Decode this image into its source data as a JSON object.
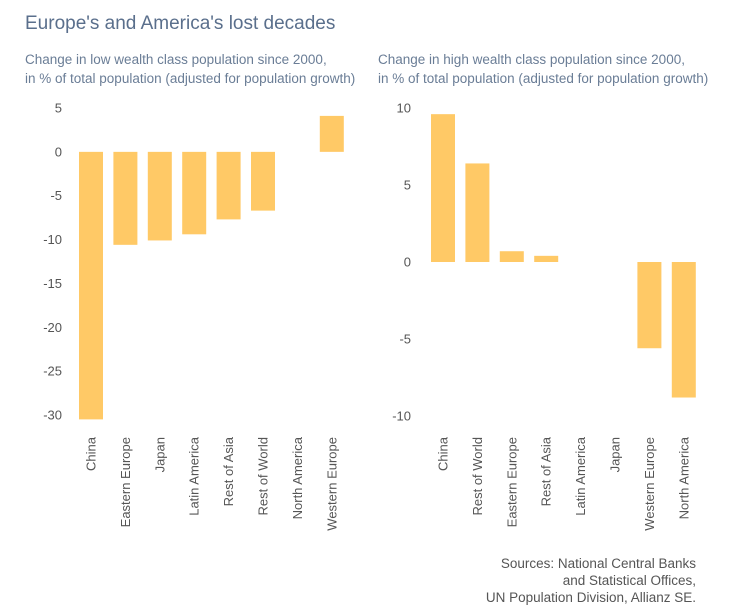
{
  "title": "Europe's and America's lost decades",
  "left_subtitle": {
    "line1": "Change in low wealth class population since 2000,",
    "line2": "in % of total population (adjusted for population growth)"
  },
  "right_subtitle": {
    "line1": "Change in high wealth class population since 2000,",
    "line2": "in % of total population (adjusted for population growth)"
  },
  "sources": {
    "line1": "Sources: National Central Banks",
    "line2": "and Statistical Offices,",
    "line3": "UN Population Division, Allianz SE."
  },
  "colors": {
    "bar": "#ffc966",
    "tick_text": "#555555"
  },
  "chart_data": [
    {
      "type": "bar",
      "title": "Change in low wealth class population since 2000, in % of total population (adjusted for population growth)",
      "categories": [
        "China",
        "Eastern Europe",
        "Japan",
        "Latin America",
        "Rest of Asia",
        "Rest of World",
        "North America",
        "Western Europe"
      ],
      "values": [
        -30.5,
        -10.6,
        -10.1,
        -9.4,
        -7.7,
        -6.7,
        0,
        4.1
      ],
      "ylim": [
        -30,
        5
      ],
      "yticks": [
        5,
        0,
        -5,
        -10,
        -15,
        -20,
        -25,
        -30
      ],
      "ytick_labels": [
        "5",
        "0",
        "-5",
        "-10",
        "-15",
        "-20",
        "-25",
        "-30"
      ],
      "grid": false
    },
    {
      "type": "bar",
      "title": "Change in high wealth class population since 2000, in % of total population (adjusted for population growth)",
      "categories": [
        "China",
        "Rest of World",
        "Eastern Europe",
        "Rest of Asia",
        "Latin America",
        "Japan",
        "Western Europe",
        "North America"
      ],
      "values": [
        9.6,
        6.4,
        0.7,
        0.4,
        0,
        0,
        -5.6,
        -8.8
      ],
      "ylim": [
        -10,
        10
      ],
      "yticks": [
        10,
        5,
        0,
        -5,
        -10
      ],
      "ytick_labels": [
        "10",
        "5",
        "0",
        "-5",
        "-10"
      ],
      "grid": false
    }
  ]
}
